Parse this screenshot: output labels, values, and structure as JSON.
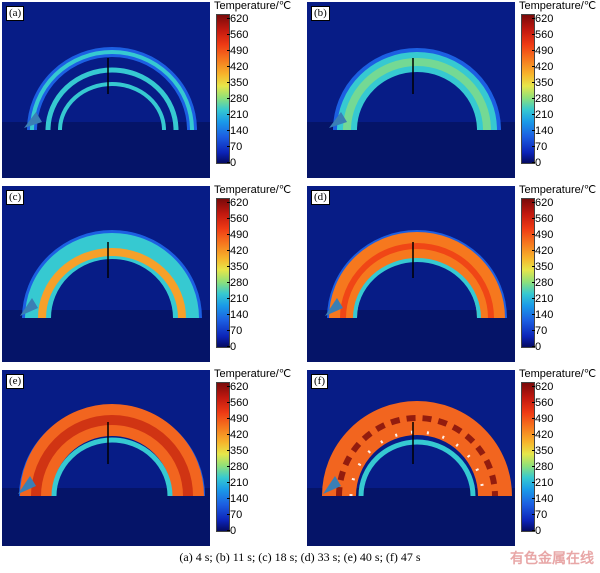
{
  "panels": [
    {
      "label": "(a)",
      "title": "Temperature/℃",
      "ticks": [
        "620",
        "560",
        "490",
        "420",
        "350",
        "280",
        "210",
        "140",
        "70",
        "0"
      ]
    },
    {
      "label": "(b)",
      "title": "Temperature/℃",
      "ticks": [
        "620",
        "560",
        "490",
        "420",
        "350",
        "280",
        "210",
        "140",
        "70",
        "0"
      ]
    },
    {
      "label": "(c)",
      "title": "Temperature/℃",
      "ticks": [
        "620",
        "560",
        "490",
        "420",
        "350",
        "280",
        "210",
        "140",
        "70",
        "0"
      ]
    },
    {
      "label": "(d)",
      "title": "Temperature/℃",
      "ticks": [
        "620",
        "560",
        "490",
        "420",
        "350",
        "280",
        "210",
        "140",
        "70",
        "0"
      ]
    },
    {
      "label": "(e)",
      "title": "Temperature/℃",
      "ticks": [
        "620",
        "560",
        "490",
        "420",
        "350",
        "280",
        "210",
        "140",
        "70",
        "0"
      ]
    },
    {
      "label": "(f)",
      "title": "Temperature/℃",
      "ticks": [
        "620",
        "560",
        "490",
        "420",
        "350",
        "280",
        "210",
        "140",
        "70",
        "0"
      ]
    }
  ],
  "caption": "(a) 4 s; (b) 11 s; (c) 18 s; (d)  33 s; (e) 40 s; (f) 47 s",
  "watermark": "有色金属在线",
  "colors": {
    "background_blue": "#071c86",
    "cool_cyan": "#35c7e0",
    "warm_orange": "#f2651f",
    "hot_red": "#c2200e",
    "spot_white": "#ffffff"
  }
}
